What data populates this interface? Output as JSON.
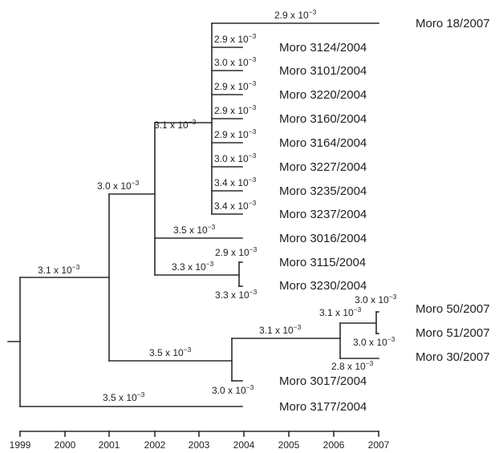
{
  "axis": {
    "years": [
      "1999",
      "2000",
      "2001",
      "2002",
      "2003",
      "2004",
      "2005",
      "2006",
      "2007"
    ]
  },
  "taxa": [
    "Moro 18/2007",
    "Moro 3124/2004",
    "Moro 3101/2004",
    "Moro 3220/2004",
    "Moro 3160/2004",
    "Moro 3164/2004",
    "Moro 3227/2004",
    "Moro 3235/2004",
    "Moro 3237/2004",
    "Moro 3016/2004",
    "Moro 3115/2004",
    "Moro 3230/2004",
    "Moro 50/2007",
    "Moro 51/2007",
    "Moro 30/2007",
    "Moro 3017/2004",
    "Moro 3177/2004"
  ],
  "rates": [
    {
      "mantissa": "3.1 x 10",
      "exponent": "−3"
    },
    {
      "mantissa": "3.0 x 10",
      "exponent": "−3"
    },
    {
      "mantissa": "3.1 x 10",
      "exponent": "−3"
    },
    {
      "mantissa": "2.9 x 10",
      "exponent": "−3"
    },
    {
      "mantissa": "2.9 x 10",
      "exponent": "−3"
    },
    {
      "mantissa": "3.0 x 10",
      "exponent": "−3"
    },
    {
      "mantissa": "2.9 x 10",
      "exponent": "−3"
    },
    {
      "mantissa": "2.9 x 10",
      "exponent": "−3"
    },
    {
      "mantissa": "2.9 x 10",
      "exponent": "−3"
    },
    {
      "mantissa": "3.0 x 10",
      "exponent": "−3"
    },
    {
      "mantissa": "3.4 x 10",
      "exponent": "−3"
    },
    {
      "mantissa": "3.4 x 10",
      "exponent": "−3"
    },
    {
      "mantissa": "3.5 x 10",
      "exponent": "−3"
    },
    {
      "mantissa": "3.3 x 10",
      "exponent": "−3"
    },
    {
      "mantissa": "2.9 x 10",
      "exponent": "−3"
    },
    {
      "mantissa": "3.3 x 10",
      "exponent": "−3"
    },
    {
      "mantissa": "3.5 x 10",
      "exponent": "−3"
    },
    {
      "mantissa": "3.1 x 10",
      "exponent": "−3"
    },
    {
      "mantissa": "3.1 x 10",
      "exponent": "−3"
    },
    {
      "mantissa": "3.0 x 10",
      "exponent": "−3"
    },
    {
      "mantissa": "3.0 x 10",
      "exponent": "−3"
    },
    {
      "mantissa": "2.8 x 10",
      "exponent": "−3"
    },
    {
      "mantissa": "3.0 x 10",
      "exponent": "−3"
    },
    {
      "mantissa": "3.5 x 10",
      "exponent": "−3"
    }
  ]
}
